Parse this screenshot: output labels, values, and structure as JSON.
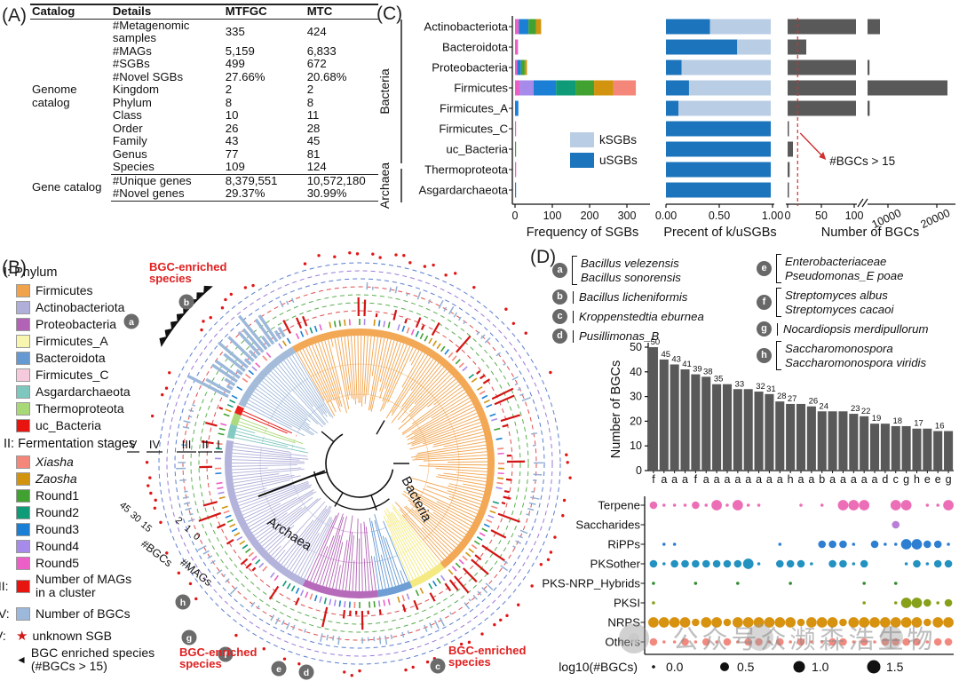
{
  "panel_a": {
    "label": "(A)",
    "headers": [
      "Catalog",
      "Details",
      "MTFGC",
      "MTC"
    ],
    "groups": [
      {
        "name": "Genome catalog",
        "rows": [
          [
            "#Metagenomic samples",
            "335",
            "424"
          ],
          [
            "#MAGs",
            "5,159",
            "6,833"
          ],
          [
            "#SGBs",
            "499",
            "672"
          ],
          [
            "#Novel SGBs",
            "27.66%",
            "20.68%"
          ],
          [
            "Kingdom",
            "2",
            "2"
          ],
          [
            "Phylum",
            "8",
            "8"
          ],
          [
            "Class",
            "10",
            "11"
          ],
          [
            "Order",
            "26",
            "28"
          ],
          [
            "Family",
            "43",
            "45"
          ],
          [
            "Genus",
            "77",
            "81"
          ],
          [
            "Species",
            "109",
            "124"
          ]
        ]
      },
      {
        "name": "Gene catalog",
        "rows": [
          [
            "#Unique genes",
            "8,379,551",
            "10,572,180"
          ],
          [
            "#Novel genes",
            "29.37%",
            "30.99%"
          ]
        ]
      }
    ]
  },
  "panel_b": {
    "label": "(B)",
    "legend_phylum": {
      "title": "I: Phylum",
      "items": [
        {
          "name": "Firmicutes",
          "color": "#F1A34C"
        },
        {
          "name": "Actinobacteriota",
          "color": "#AFAFD9"
        },
        {
          "name": "Proteobacteria",
          "color": "#B263B6"
        },
        {
          "name": "Firmicutes_A",
          "color": "#F8F6AE"
        },
        {
          "name": "Bacteroidota",
          "color": "#6699D2"
        },
        {
          "name": "Firmicutes_C",
          "color": "#F6CADD"
        },
        {
          "name": "Asgardarchaeota",
          "color": "#7EC7BF"
        },
        {
          "name": "Thermoproteota",
          "color": "#A9D877"
        },
        {
          "name": "uc_Bacteria",
          "color": "#E8140F"
        }
      ]
    },
    "legend_stages": {
      "title": "II: Fermentation stages",
      "items": [
        {
          "name": "Xiasha",
          "color": "#F5877A",
          "italic": true
        },
        {
          "name": "Zaosha",
          "color": "#D2940F",
          "italic": true
        },
        {
          "name": "Round1",
          "color": "#41A231",
          "italic": false
        },
        {
          "name": "Round2",
          "color": "#0F9B77",
          "italic": false
        },
        {
          "name": "Round3",
          "color": "#1B80D5",
          "italic": false
        },
        {
          "name": "Round4",
          "color": "#A78BEB",
          "italic": false
        },
        {
          "name": "Round5",
          "color": "#EB5FC7",
          "italic": false
        }
      ]
    },
    "legend_mags": {
      "prefix": "III:",
      "color": "#E8140F",
      "line1": "Number of MAGs",
      "line2": "in a cluster"
    },
    "legend_bgcs": {
      "prefix": "IV:",
      "color": "#9CB8DA",
      "text": "Number of BGCs"
    },
    "legend_unknown": {
      "prefix": "V:",
      "symbol": "★",
      "symbol_color": "#D01818",
      "text": "unknown SGB"
    },
    "legend_enriched": {
      "symbol": "◄",
      "line1": "BGC enriched species",
      "line2": "(#BGCs > 15)"
    },
    "tree": {
      "ring_labels": [
        "V",
        "IV",
        "III",
        "II",
        "I"
      ],
      "scale_bgcs": [
        "45",
        "30",
        "15"
      ],
      "scale_mags": [
        "2",
        "1",
        "0"
      ],
      "axis_bgcs": "#BGCs",
      "axis_mags": "#MAGs",
      "center_labels": [
        "Bacteria",
        "Archaea"
      ],
      "enriched_line1": "BGC-enriched",
      "enriched_line2": "species",
      "letter_marks": [
        "a",
        "b",
        "c",
        "d",
        "e",
        "f",
        "g",
        "h"
      ],
      "sectors": [
        {
          "phylum": "Firmicutes",
          "a0": -30,
          "a1": 141,
          "color": "#F1A34C"
        },
        {
          "phylum": "Firmicutes_A",
          "a0": 141,
          "a1": 157,
          "color": "#F3E97A"
        },
        {
          "phylum": "Bacteroidota",
          "a0": 157,
          "a1": 172,
          "color": "#6699D2"
        },
        {
          "phylum": "Proteobacteria",
          "a0": 172,
          "a1": 205,
          "color": "#B263B6"
        },
        {
          "phylum": "Actinobacteriota",
          "a0": 205,
          "a1": 280,
          "color": "#AFAFD9"
        },
        {
          "phylum": "Asgardarchaeota",
          "a0": 281,
          "a1": 287,
          "color": "#7EC7BF"
        },
        {
          "phylum": "Thermoproteota",
          "a0": 287,
          "a1": 292,
          "color": "#A9D877"
        },
        {
          "phylum": "uc_Bacteria",
          "a0": 292,
          "a1": 295.5,
          "color": "#E8140F"
        },
        {
          "phylum": "Bacteroidota_nw",
          "a0": 296,
          "a1": 330,
          "color": "#9FB8D8"
        }
      ]
    }
  },
  "panel_c": {
    "label": "(C)",
    "group_labels": [
      "Bacteria",
      "Archaea"
    ],
    "categories": [
      "Actinobacteriota",
      "Bacteroidota",
      "Proteobacteria",
      "Firmicutes",
      "Firmicutes_A",
      "Firmicutes_C",
      "uc_Bacteria",
      "Thermoproteota",
      "Asgardarchaeota"
    ]
  },
  "panel_d": {
    "label": "(D)",
    "species_legend": [
      {
        "letter": "a",
        "lines": [
          "Bacillus velezensis",
          "Bacillus sonorensis"
        ],
        "col": 1
      },
      {
        "letter": "b",
        "lines": [
          "Bacillus licheniformis"
        ],
        "col": 1
      },
      {
        "letter": "c",
        "lines": [
          "Kroppenstedtia eburnea"
        ],
        "col": 1
      },
      {
        "letter": "d",
        "lines": [
          "Pusillimonas_B"
        ],
        "col": 1
      },
      {
        "letter": "e",
        "lines": [
          "Enterobacteriaceae",
          "Pseudomonas_E poae"
        ],
        "col": 2
      },
      {
        "letter": "f",
        "lines": [
          "Streptomyces albus",
          "Streptomyces cacaoi"
        ],
        "col": 2
      },
      {
        "letter": "g",
        "lines": [
          "Nocardiopsis merdipullorum"
        ],
        "col": 2
      },
      {
        "letter": "h",
        "lines": [
          "Saccharomonospora",
          "Saccharomonospora viridis"
        ],
        "col": 2
      }
    ]
  },
  "chart_data": [
    {
      "id": "freq_sgbs",
      "type": "bar",
      "orientation": "horizontal",
      "stacked": true,
      "xlabel": "Frequency of SGBs",
      "xticks": [
        "0",
        "100",
        "200",
        "300"
      ],
      "xlim": [
        0,
        340
      ],
      "categories": [
        "Actinobacteriota",
        "Bacteroidota",
        "Proteobacteria",
        "Firmicutes",
        "Firmicutes_A",
        "Firmicutes_C",
        "uc_Bacteria",
        "Thermoproteota",
        "Asgardarchaeota"
      ],
      "series": [
        {
          "name": "Round5",
          "color": "#EB5FC7",
          "values": [
            10,
            8,
            6,
            12,
            0,
            2,
            0,
            3,
            0
          ]
        },
        {
          "name": "Round4",
          "color": "#A78BEB",
          "values": [
            0,
            0,
            0,
            38,
            0,
            0,
            0,
            0,
            0
          ]
        },
        {
          "name": "Round3",
          "color": "#1B80D5",
          "values": [
            26,
            0,
            10,
            60,
            9,
            0,
            0,
            0,
            2
          ]
        },
        {
          "name": "Round2",
          "color": "#0F9B77",
          "values": [
            0,
            0,
            0,
            52,
            0,
            0,
            0,
            0,
            0
          ]
        },
        {
          "name": "Round1",
          "color": "#41A231",
          "values": [
            20,
            0,
            10,
            50,
            0,
            0,
            2,
            0,
            0
          ]
        },
        {
          "name": "Zaosha",
          "color": "#D2940F",
          "values": [
            14,
            0,
            6,
            52,
            0,
            0,
            0,
            0,
            0
          ]
        },
        {
          "name": "Xiasha",
          "color": "#F5877A",
          "values": [
            0,
            0,
            0,
            60,
            0,
            0,
            0,
            0,
            0
          ]
        }
      ]
    },
    {
      "id": "pct_kusgbs",
      "type": "bar",
      "orientation": "horizontal",
      "stacked": true,
      "xlabel": "Precent of k/uSGBs",
      "xticks": [
        "0.00",
        "0.50",
        "1.00"
      ],
      "xlim": [
        0,
        1
      ],
      "series": [
        {
          "name": "uSGBs",
          "color": "#1B74BC",
          "values": [
            0.42,
            0.68,
            0.15,
            0.22,
            0.12,
            1,
            1,
            1,
            1
          ]
        },
        {
          "name": "kSGBs",
          "color": "#B9CDE5",
          "values": [
            0.58,
            0.32,
            0.85,
            0.78,
            0.88,
            0,
            0,
            0,
            0
          ]
        }
      ],
      "legend": [
        {
          "label": "kSGBs",
          "color": "#B9CDE5"
        },
        {
          "label": "uSGBs",
          "color": "#1B74BC"
        }
      ]
    },
    {
      "id": "num_bgcs",
      "type": "bar",
      "orientation": "horizontal",
      "xlabel": "Number of BGCs",
      "xticks": [
        "0",
        "50",
        "100",
        "10000",
        "20000"
      ],
      "axis_break": true,
      "bar_color": "#595959",
      "threshold": 15,
      "threshold_color": "#D03030",
      "annotation": "#BGCs > 15",
      "values": [
        700,
        28,
        110,
        22000,
        120,
        2,
        8,
        3,
        2
      ]
    },
    {
      "id": "bgcs_per_species",
      "type": "bar",
      "orientation": "vertical",
      "ylabel": "Number of BGCs",
      "yticks": [
        "0",
        "10",
        "20",
        "30",
        "40",
        "50"
      ],
      "ylim": [
        0,
        53
      ],
      "bar_color": "#595959",
      "categories": [
        "f",
        "a",
        "a",
        "a",
        "f",
        "a",
        "a",
        "a",
        "a",
        "a",
        "a",
        "a",
        "a",
        "h",
        "a",
        "a",
        "b",
        "a",
        "a",
        "a",
        "a",
        "a",
        "d",
        "c",
        "g",
        "h",
        "e",
        "e",
        "g"
      ],
      "values": [
        50,
        45,
        43,
        41,
        39,
        38,
        35,
        35,
        33,
        33,
        32,
        31,
        28,
        27,
        27,
        26,
        24,
        24,
        24,
        23,
        22,
        19,
        19,
        18,
        18,
        17,
        17,
        16,
        16
      ]
    },
    {
      "id": "bgc_classes_bubble",
      "type": "scatter",
      "size_legend": {
        "label": "log10(#BGCs)",
        "entries": [
          "0.0",
          "0.5",
          "1.0",
          "1.5"
        ]
      },
      "rows": [
        {
          "name": "Terpene",
          "color": "#EC6EB7",
          "sizes": [
            2,
            1,
            1,
            1,
            2,
            1,
            3,
            1,
            3,
            1,
            1,
            0,
            0,
            0,
            1,
            0,
            1,
            0,
            3,
            3,
            3,
            0,
            0,
            3,
            3,
            0,
            1,
            1,
            3
          ]
        },
        {
          "name": "Saccharides",
          "color": "#B77FD7",
          "sizes": [
            0,
            0,
            0,
            0,
            0,
            0,
            0,
            0,
            0,
            0,
            0,
            0,
            0,
            0,
            0,
            0,
            0,
            0,
            0,
            0,
            0,
            0,
            0,
            2,
            0,
            0,
            0,
            0,
            0
          ]
        },
        {
          "name": "RiPPs",
          "color": "#2E7FD1",
          "sizes": [
            0,
            1,
            1,
            0,
            0,
            0,
            0,
            0,
            0,
            0,
            0,
            0,
            1,
            0,
            0,
            0,
            2,
            2,
            2,
            1,
            0,
            2,
            1,
            1,
            3,
            3,
            2,
            2,
            1
          ]
        },
        {
          "name": "PKSother",
          "color": "#2392C1",
          "sizes": [
            2,
            1,
            2,
            2,
            2,
            2,
            2,
            2,
            2,
            3,
            1,
            0,
            2,
            2,
            2,
            1,
            0,
            2,
            2,
            1,
            2,
            0,
            0,
            0,
            1,
            2,
            1,
            2,
            2
          ]
        },
        {
          "name": "PKS-NRP_Hybrids",
          "color": "#2F8B2F",
          "sizes": [
            1,
            0,
            0,
            0,
            1,
            0,
            0,
            0,
            1,
            0,
            0,
            0,
            0,
            1,
            0,
            0,
            0,
            0,
            0,
            0,
            1,
            0,
            0,
            1,
            0,
            0,
            0,
            0,
            0
          ]
        },
        {
          "name": "PKSI",
          "color": "#87A01A",
          "sizes": [
            1,
            0,
            0,
            0,
            0,
            0,
            0,
            0,
            0,
            0,
            0,
            0,
            0,
            0,
            0,
            0,
            0,
            0,
            0,
            0,
            1,
            0,
            0,
            1,
            3,
            3,
            2,
            1,
            2
          ]
        },
        {
          "name": "NRPS",
          "color": "#D79210",
          "sizes": [
            3,
            3,
            3,
            3,
            2,
            3,
            3,
            2,
            3,
            3,
            3,
            3,
            3,
            3,
            2,
            3,
            3,
            3,
            2,
            3,
            3,
            3,
            3,
            3,
            3,
            3,
            2,
            3,
            3
          ]
        },
        {
          "name": "Others",
          "color": "#F2897F",
          "sizes": [
            2,
            1,
            1,
            2,
            1,
            2,
            1,
            2,
            1,
            2,
            2,
            1,
            2,
            1,
            2,
            1,
            1,
            2,
            2,
            1,
            2,
            1,
            2,
            2,
            2,
            2,
            1,
            2,
            2
          ]
        }
      ]
    }
  ],
  "watermark": {
    "text": "公众号众濒森浩生物"
  }
}
